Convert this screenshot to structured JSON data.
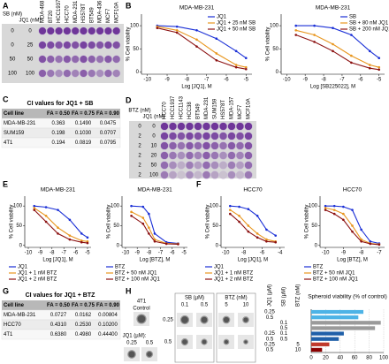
{
  "panel_labels": [
    "A",
    "B",
    "C",
    "D",
    "E",
    "F",
    "G",
    "H"
  ],
  "plate_a": {
    "row_headers": [
      "SB (nM)",
      "JQ1 (nM)"
    ],
    "rows": [
      [
        "0",
        "0"
      ],
      [
        "0",
        "25"
      ],
      [
        "50",
        "50"
      ],
      [
        "100",
        "100"
      ]
    ],
    "cell_lines": [
      {
        "name": "MDA-468",
        "color": "#1f5fd6"
      },
      {
        "name": "BT20",
        "color": "#1f5fd6"
      },
      {
        "name": "HCC1937",
        "color": "#1f5fd6"
      },
      {
        "name": "HCC70",
        "color": "#1f5fd6"
      },
      {
        "name": "MDA-231",
        "color": "#2e9a2e"
      },
      {
        "name": "HS578T",
        "color": "#2e9a2e"
      },
      {
        "name": "BT549",
        "color": "#2e9a2e"
      },
      {
        "name": "MDA-436",
        "color": "#2e9a2e"
      },
      {
        "name": "MCF7",
        "color": "#000000"
      },
      {
        "name": "MCF10A",
        "color": "#000000"
      }
    ]
  },
  "plate_d": {
    "row_headers": [
      "BTZ (nM)",
      "JQ1 (nM)"
    ],
    "rows": [
      [
        "0",
        "0"
      ],
      [
        "2",
        "0"
      ],
      [
        "2",
        "10"
      ],
      [
        "2",
        "20"
      ],
      [
        "2",
        "50"
      ],
      [
        "2",
        "100"
      ]
    ],
    "cell_lines": [
      {
        "name": "HCC70",
        "color": "#1f5fd6"
      },
      {
        "name": "HCC1937",
        "color": "#1f5fd6"
      },
      {
        "name": "HCC1143",
        "color": "#1f5fd6"
      },
      {
        "name": "HCC38",
        "color": "#1f5fd6"
      },
      {
        "name": "BT549",
        "color": "#2e9a2e"
      },
      {
        "name": "MDA-231",
        "color": "#2e9a2e"
      },
      {
        "name": "SUM159",
        "color": "#2e9a2e"
      },
      {
        "name": "HS578T",
        "color": "#2e9a2e"
      },
      {
        "name": "MDA-157",
        "color": "#2e9a2e"
      },
      {
        "name": "MCF7",
        "color": "#000000"
      },
      {
        "name": "MCF10A",
        "color": "#000000"
      }
    ]
  },
  "table_c": {
    "title": "CI values for JQ1 + SB",
    "header": [
      "Cell line",
      "FA = 0.50",
      "FA = 0.75",
      "FA = 0.90"
    ],
    "rows": [
      [
        "MDA-MB-231",
        "0.363",
        "0.1490",
        "0.0475"
      ],
      [
        "SUM159",
        "0.198",
        "0.1030",
        "0.0707"
      ],
      [
        "4T1",
        "0.194",
        "0.0819",
        "0.0795"
      ]
    ]
  },
  "table_g": {
    "title": "CI values for JQ1 + BTZ",
    "header": [
      "Cell line",
      "FA = 0.50",
      "FA = 0.75",
      "FA = 0.90"
    ],
    "rows": [
      [
        "MDA-MB-231",
        "0.0727",
        "0.0162",
        "0.00804"
      ],
      [
        "HCC70",
        "0.4310",
        "0.2530",
        "0.10200"
      ],
      [
        "4T1",
        "0.6380",
        "0.4980",
        "0.44400"
      ]
    ]
  },
  "spheroids": {
    "cell_line": "4T1",
    "control": "Control",
    "jq1_label": "JQ1 (µM):",
    "jq1_levels": [
      "0.25",
      "0.5"
    ],
    "sb_label": "SB (µM)",
    "sb_levels": [
      "0.1",
      "0.5"
    ],
    "btz_label": "BTZ (nM)",
    "btz_levels": [
      "5",
      "10"
    ]
  },
  "chart_data": [
    {
      "type": "line",
      "title": "MDA-MB-231",
      "xlabel": "Log [JQ1], M",
      "ylabel": "% Cell viability",
      "legend": "upper right",
      "x": [
        -9.5,
        -8.5,
        -7.5,
        -6.5,
        -5.5,
        -5
      ],
      "xlim": [
        -10.3,
        -4.7
      ],
      "xticks": [
        -10,
        -9,
        -8,
        -7,
        -6,
        -5
      ],
      "ylim": [
        -5,
        125
      ],
      "yticks": [
        0,
        50,
        100
      ],
      "series": [
        {
          "name": "JQ1",
          "color": "#1a2fd6",
          "values": [
            100,
            98,
            90,
            72,
            45,
            30
          ]
        },
        {
          "name": "JQ1 + 25 nM SB",
          "color": "#e8961e",
          "values": [
            98,
            90,
            70,
            40,
            15,
            10
          ]
        },
        {
          "name": "JQ1 + 50 nM SB",
          "color": "#8b1010",
          "values": [
            95,
            85,
            55,
            25,
            10,
            6
          ]
        }
      ]
    },
    {
      "type": "line",
      "title": "MDA-MB-231",
      "xlabel": "Log [SB225022], M",
      "ylabel": "% Cell viability",
      "legend": "upper right",
      "x": [
        -9.5,
        -8.5,
        -7.5,
        -6.5,
        -5.5,
        -5
      ],
      "xlim": [
        -10.3,
        -4.7
      ],
      "xticks": [
        -10,
        -9,
        -8,
        -7,
        -6,
        -5
      ],
      "ylim": [
        -5,
        125
      ],
      "yticks": [
        0,
        50,
        100
      ],
      "series": [
        {
          "name": "SB",
          "color": "#1a2fd6",
          "values": [
            100,
            100,
            95,
            80,
            45,
            30
          ]
        },
        {
          "name": "SB + 80 nM JQ1",
          "color": "#e8961e",
          "values": [
            90,
            80,
            60,
            35,
            15,
            10
          ]
        },
        {
          "name": "SB + 200 nM JQ1",
          "color": "#8b1010",
          "values": [
            80,
            65,
            45,
            20,
            8,
            5
          ]
        }
      ]
    },
    {
      "type": "line",
      "title": "MDA-MB-231",
      "xlabel": "Log [JQ1], M",
      "ylabel": "% Cell viability",
      "legend": "below",
      "x": [
        -9.5,
        -8.5,
        -7.5,
        -6.5,
        -5.5,
        -5
      ],
      "xlim": [
        -10.3,
        -4.7
      ],
      "xticks": [
        -10,
        -9,
        -8,
        -7,
        -6,
        -5
      ],
      "ylim": [
        -5,
        125
      ],
      "yticks": [
        0,
        50,
        100
      ],
      "series": [
        {
          "name": "JQ1",
          "color": "#1a2fd6",
          "values": [
            100,
            97,
            90,
            65,
            30,
            20
          ]
        },
        {
          "name": "JQ1 + 1 nM BTZ",
          "color": "#e8961e",
          "values": [
            95,
            75,
            45,
            25,
            12,
            10
          ]
        },
        {
          "name": "JQ1 + 2 nM BTZ",
          "color": "#8b1010",
          "values": [
            90,
            60,
            30,
            15,
            8,
            6
          ]
        }
      ]
    },
    {
      "type": "line",
      "title": "MDA-MB-231",
      "xlabel": "Log [BTZ], M",
      "ylabel": "% Cell viability",
      "legend": "below",
      "x": [
        -9.5,
        -8.5,
        -8,
        -7.5,
        -6.5,
        -5.5
      ],
      "xlim": [
        -10.3,
        -4.7
      ],
      "xticks": [
        -10,
        -9,
        -8,
        -7,
        -6,
        -5
      ],
      "ylim": [
        -5,
        125
      ],
      "yticks": [
        0,
        50,
        100
      ],
      "series": [
        {
          "name": "BTZ",
          "color": "#1a2fd6",
          "values": [
            100,
            98,
            80,
            30,
            8,
            5
          ]
        },
        {
          "name": "BTZ + 50 nM JQ1",
          "color": "#e8961e",
          "values": [
            85,
            70,
            45,
            15,
            5,
            4
          ]
        },
        {
          "name": "BTZ + 100 nM JQ1",
          "color": "#8b1010",
          "values": [
            75,
            55,
            30,
            10,
            4,
            3
          ]
        }
      ]
    },
    {
      "type": "line",
      "title": "HCC70",
      "xlabel": "Log [JQ1], M",
      "ylabel": "% Cell viability",
      "legend": "below",
      "x": [
        -9.5,
        -8.5,
        -7.5,
        -6.5,
        -5.5,
        -4.5
      ],
      "xlim": [
        -10.5,
        -3.5
      ],
      "xticks": [
        -10,
        -8,
        -6,
        -4
      ],
      "ylim": [
        -5,
        125
      ],
      "yticks": [
        0,
        50,
        100
      ],
      "series": [
        {
          "name": "JQ1",
          "color": "#1a2fd6",
          "values": [
            100,
            98,
            92,
            75,
            40,
            25
          ]
        },
        {
          "name": "JQ1 + 1 nM BTZ",
          "color": "#e8961e",
          "values": [
            90,
            75,
            50,
            30,
            15,
            10
          ]
        },
        {
          "name": "JQ1 + 2 nM BTZ",
          "color": "#8b1010",
          "values": [
            80,
            60,
            35,
            20,
            10,
            8
          ]
        }
      ]
    },
    {
      "type": "line",
      "title": "HCC70",
      "xlabel": "Log [BTZ], M",
      "ylabel": "% Cell viability",
      "legend": "below",
      "x": [
        -10,
        -9.5,
        -9,
        -8.5,
        -8,
        -7.5,
        -7
      ],
      "xlim": [
        -10.3,
        -6.7
      ],
      "xticks": [
        -10,
        -9,
        -8,
        -7
      ],
      "ylim": [
        -5,
        125
      ],
      "yticks": [
        0,
        50,
        100
      ],
      "series": [
        {
          "name": "BTZ",
          "color": "#1a2fd6",
          "values": [
            100,
            100,
            98,
            90,
            40,
            10,
            5
          ]
        },
        {
          "name": "BTZ + 50 nM JQ1",
          "color": "#e8961e",
          "values": [
            95,
            90,
            80,
            50,
            15,
            5,
            3
          ]
        },
        {
          "name": "BTZ + 100 nM JQ1",
          "color": "#8b1010",
          "values": [
            90,
            80,
            65,
            35,
            10,
            4,
            2
          ]
        }
      ]
    },
    {
      "type": "hbar",
      "title": "Spheroid viability (% of control)",
      "row_headers": [
        "JQ1 (µM)",
        "SB (µM)",
        "BTZ (nM)"
      ],
      "jq1": [
        "0.25",
        "0.5",
        null,
        null,
        "0.25",
        "0.5",
        "0.25",
        "0.5"
      ],
      "sb": [
        null,
        null,
        "0.1",
        "0.5",
        "0.1",
        "0.5",
        null,
        null
      ],
      "btz": [
        null,
        null,
        null,
        null,
        null,
        null,
        "5",
        "10"
      ],
      "values": [
        72,
        65,
        96,
        88,
        45,
        38,
        25,
        15
      ],
      "colors": [
        "#4db3e6",
        "#4db3e6",
        "#9a9a9a",
        "#9a9a9a",
        "#1f5fa8",
        "#1f5fa8",
        "#c0392b",
        "#8b0000"
      ],
      "xlim": [
        0,
        100
      ],
      "xticks": [
        0,
        20,
        40,
        60,
        80,
        100
      ],
      "grid": true
    }
  ]
}
